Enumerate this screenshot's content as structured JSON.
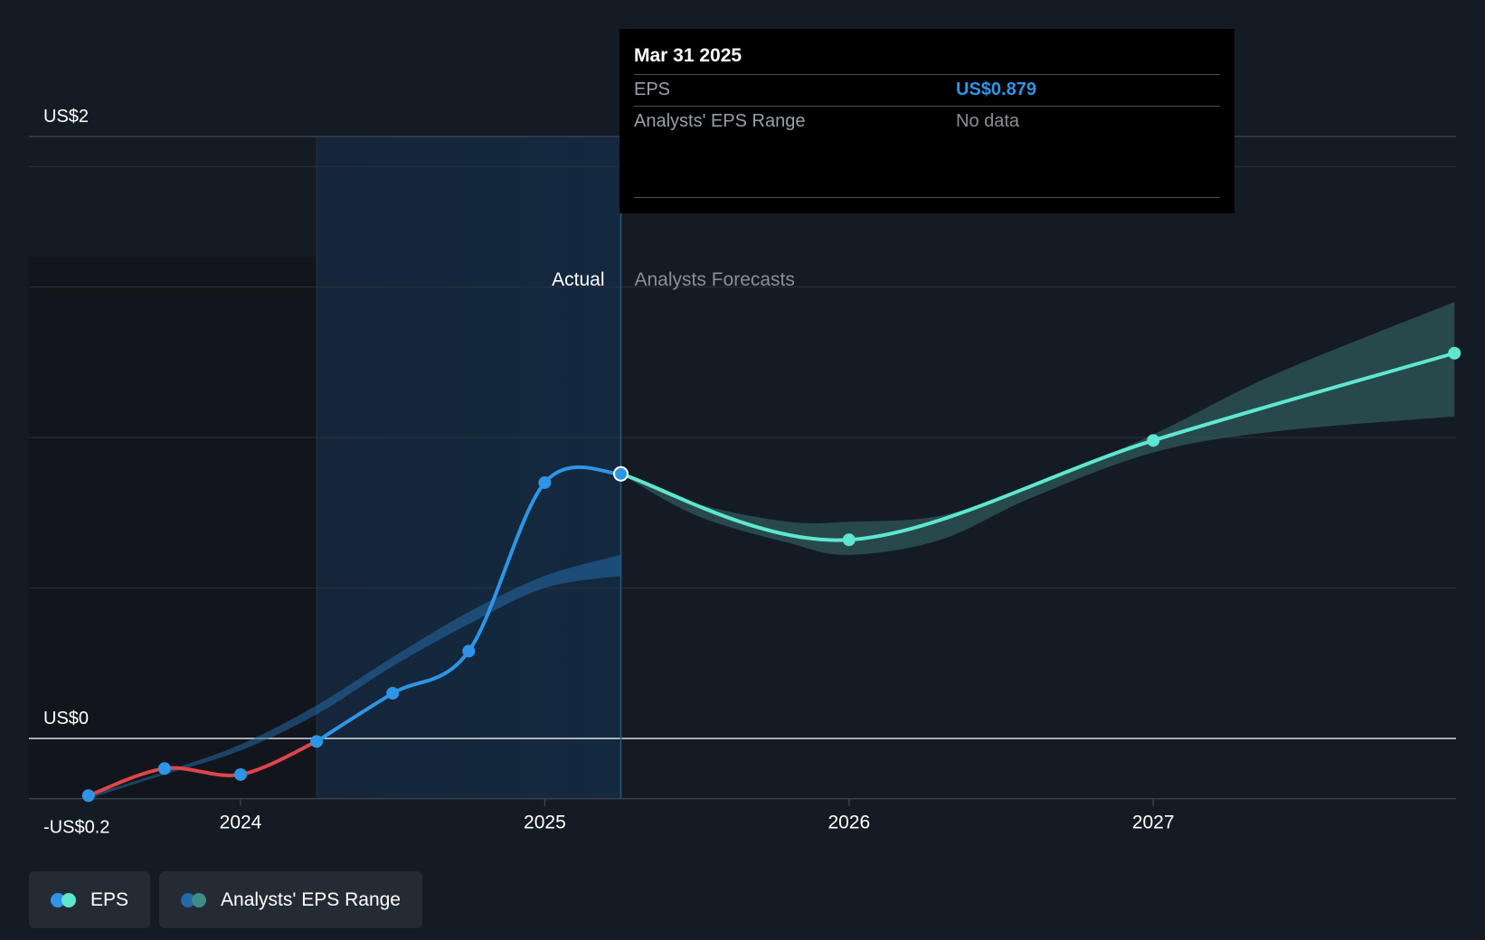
{
  "colors": {
    "background": "#151b24",
    "past_eps": "#2e95e6",
    "negative_eps": "#e0454a",
    "forecast_eps": "#5ee6d0",
    "forecast_band": "#2e5a5a",
    "past_band": "#2569a6"
  },
  "tooltip": {
    "date": "Mar 31 2025",
    "eps_label": "EPS",
    "eps_value": "US$0.879",
    "range_label": "Analysts' EPS Range",
    "range_value": "No data"
  },
  "legend": {
    "eps_label": "EPS",
    "range_label": "Analysts' EPS Range"
  },
  "chart_data": {
    "type": "line",
    "title": "",
    "xlabel": "",
    "ylabel": "",
    "x_ticks": [
      {
        "label": "2024",
        "x": 2024.0
      },
      {
        "label": "2025",
        "x": 2025.0
      },
      {
        "label": "2026",
        "x": 2026.0
      },
      {
        "label": "2027",
        "x": 2027.0
      }
    ],
    "y_ticks": [
      {
        "label": "US$2",
        "value": 2.0
      },
      {
        "label": "US$0",
        "value": 0.0
      },
      {
        "label": "-US$0.2",
        "value": -0.2
      }
    ],
    "xlim": [
      2023.3,
      2027.98
    ],
    "ylim": [
      -0.2,
      2.0
    ],
    "grid_values": [
      1.9,
      1.5,
      1.0,
      0.5
    ],
    "actual_label": "Actual",
    "forecast_label": "Analysts Forecasts",
    "divider_x": 2025.25,
    "shade_start_x": 2024.25,
    "series": [
      {
        "name": "EPS",
        "kind": "actual",
        "points": [
          [
            2023.5,
            -0.19
          ],
          [
            2023.75,
            -0.1
          ],
          [
            2024.0,
            -0.12
          ],
          [
            2024.25,
            -0.01
          ],
          [
            2024.5,
            0.15
          ],
          [
            2024.75,
            0.29
          ],
          [
            2025.0,
            0.85
          ],
          [
            2025.25,
            0.879
          ]
        ]
      },
      {
        "name": "EPS",
        "kind": "forecast",
        "points": [
          [
            2025.25,
            0.879
          ],
          [
            2026.0,
            0.66
          ],
          [
            2027.0,
            0.99
          ],
          [
            2027.99,
            1.28
          ]
        ]
      }
    ],
    "forecast_range": {
      "x": [
        2025.25,
        2025.5,
        2025.8,
        2026.0,
        2026.3,
        2026.6,
        2027.0,
        2027.4,
        2027.99
      ],
      "low": [
        0.879,
        0.74,
        0.65,
        0.61,
        0.66,
        0.8,
        0.95,
        1.02,
        1.07
      ],
      "high": [
        0.879,
        0.78,
        0.72,
        0.72,
        0.74,
        0.84,
        1.01,
        1.21,
        1.45
      ]
    },
    "past_range": {
      "x": [
        2023.5,
        2023.75,
        2024.0,
        2024.25,
        2024.5,
        2024.75,
        2025.0,
        2025.25
      ],
      "low": [
        -0.2,
        -0.12,
        -0.04,
        0.08,
        0.24,
        0.38,
        0.5,
        0.54
      ],
      "high": [
        -0.19,
        -0.11,
        -0.02,
        0.11,
        0.27,
        0.42,
        0.54,
        0.61
      ]
    }
  }
}
